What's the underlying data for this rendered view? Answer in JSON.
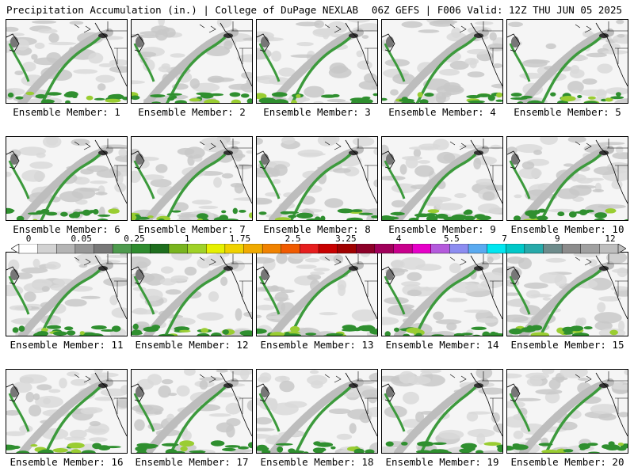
{
  "header": {
    "title": "Precipitation Accumulation (in.) | College of DuPage NEXLAB",
    "run_info": "06Z GEFS | F006 Valid: 12Z THU JUN 05 2025"
  },
  "panels": [
    {
      "member": 1,
      "label": "Ensemble Member: 1"
    },
    {
      "member": 2,
      "label": "Ensemble Member: 2"
    },
    {
      "member": 3,
      "label": "Ensemble Member: 3"
    },
    {
      "member": 4,
      "label": "Ensemble Member: 4"
    },
    {
      "member": 5,
      "label": "Ensemble Member: 5"
    },
    {
      "member": 6,
      "label": "Ensemble Member: 6"
    },
    {
      "member": 7,
      "label": "Ensemble Member: 7"
    },
    {
      "member": 8,
      "label": "Ensemble Member: 8"
    },
    {
      "member": 9,
      "label": "Ensemble Member: 9"
    },
    {
      "member": 10,
      "label": "Ensemble Member: 10"
    },
    {
      "member": 11,
      "label": "Ensemble Member: 11"
    },
    {
      "member": 12,
      "label": "Ensemble Member: 12"
    },
    {
      "member": 13,
      "label": "Ensemble Member: 13"
    },
    {
      "member": 14,
      "label": "Ensemble Member: 14"
    },
    {
      "member": 15,
      "label": "Ensemble Member: 15"
    },
    {
      "member": 16,
      "label": "Ensemble Member: 16"
    },
    {
      "member": 17,
      "label": "Ensemble Member: 17"
    },
    {
      "member": 18,
      "label": "Ensemble Member: 18"
    },
    {
      "member": 19,
      "label": "Ensemble Member: 19"
    },
    {
      "member": 20,
      "label": "Ensemble Member: 20"
    }
  ],
  "colorbar": {
    "labels": [
      "0",
      "0.05",
      "0.25",
      "1",
      "1.75",
      "2.5",
      "3.25",
      "4",
      "5.5",
      "7",
      "9",
      "12"
    ],
    "colors": [
      "#ffffff",
      "#d2d2d2",
      "#b4b4b4",
      "#969696",
      "#787878",
      "#4e9a4e",
      "#2e8b2e",
      "#1e6e1e",
      "#78b41e",
      "#a0d228",
      "#e6f000",
      "#f0d200",
      "#f0aa00",
      "#f08200",
      "#f05a00",
      "#e61e1e",
      "#c80000",
      "#a00000",
      "#8c0028",
      "#a0005a",
      "#c8008c",
      "#e600c8",
      "#b45adc",
      "#8c8cf0",
      "#5aaaf0",
      "#00e6f0",
      "#00c8c8",
      "#28aaaa",
      "#6e8c8c",
      "#8c8c8c",
      "#a0a0a0",
      "#bebebe"
    ]
  }
}
